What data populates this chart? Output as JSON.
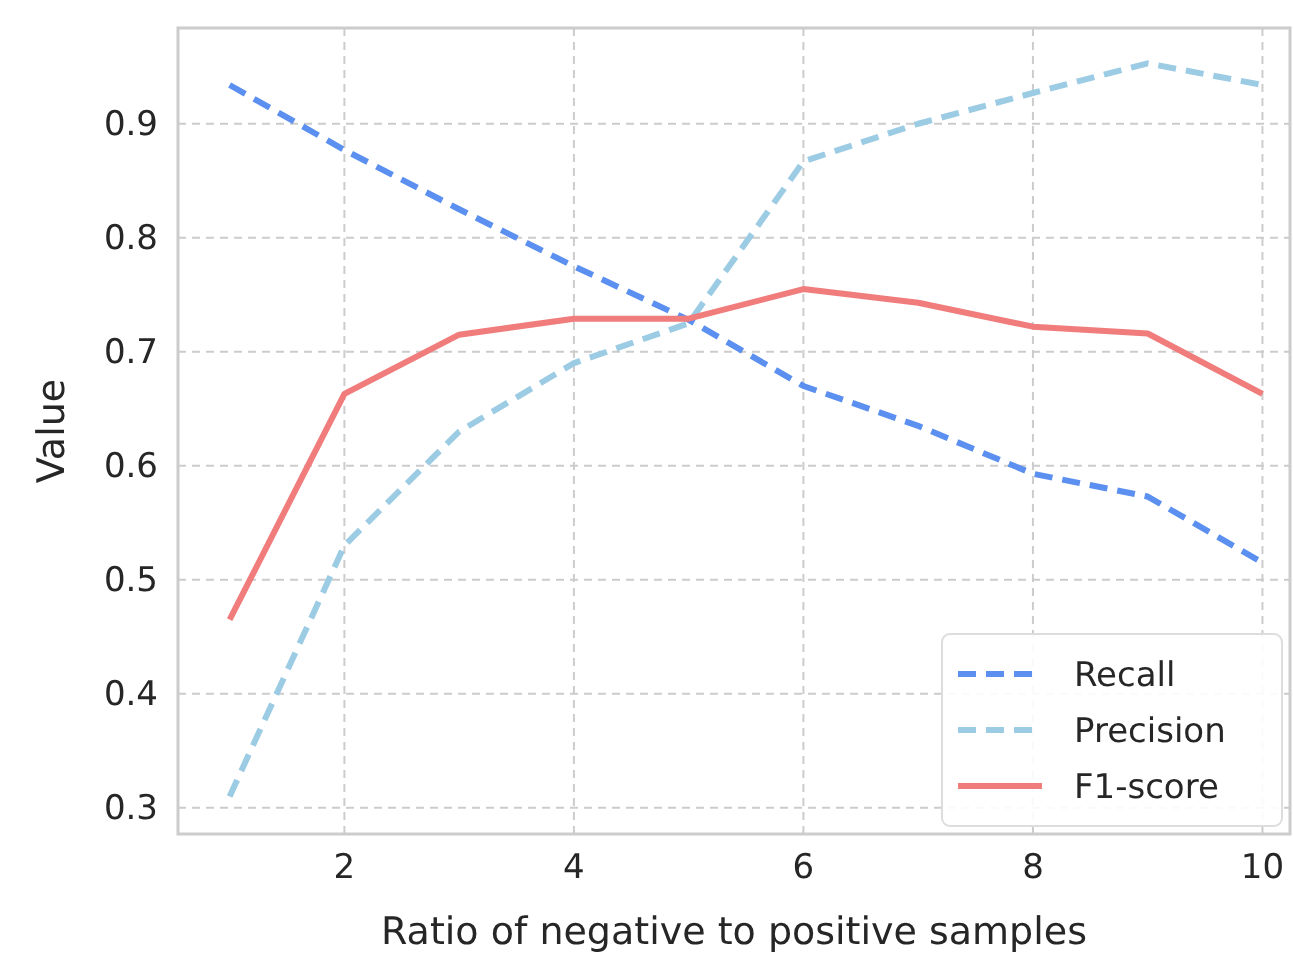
{
  "chart_data": {
    "type": "line",
    "xlabel": "Ratio of negative to positive samples",
    "ylabel": "Value",
    "x": [
      1,
      2,
      3,
      4,
      5,
      6,
      7,
      8,
      9,
      10
    ],
    "series": [
      {
        "name": "Recall",
        "color": "#5b8ff0",
        "line_style": "dashed",
        "values": [
          0.934,
          0.877,
          0.825,
          0.775,
          0.728,
          0.67,
          0.635,
          0.593,
          0.573,
          0.515
        ]
      },
      {
        "name": "Precision",
        "color": "#9ccbe4",
        "line_style": "dashed",
        "values": [
          0.31,
          0.53,
          0.63,
          0.69,
          0.725,
          0.867,
          0.9,
          0.927,
          0.953,
          0.934
        ]
      },
      {
        "name": "F1-score",
        "color": "#f07c7c",
        "line_style": "solid",
        "values": [
          0.465,
          0.663,
          0.715,
          0.729,
          0.729,
          0.755,
          0.743,
          0.722,
          0.716,
          0.663
        ]
      }
    ],
    "xlim": [
      0.55,
      10.24
    ],
    "xticks": [
      2,
      4,
      6,
      8,
      10
    ],
    "ylim": [
      0.277,
      0.984
    ],
    "yticks": [
      0.3,
      0.4,
      0.5,
      0.6,
      0.7,
      0.8,
      0.9
    ],
    "grid": true,
    "legend": "bottom right",
    "marker": "none"
  }
}
